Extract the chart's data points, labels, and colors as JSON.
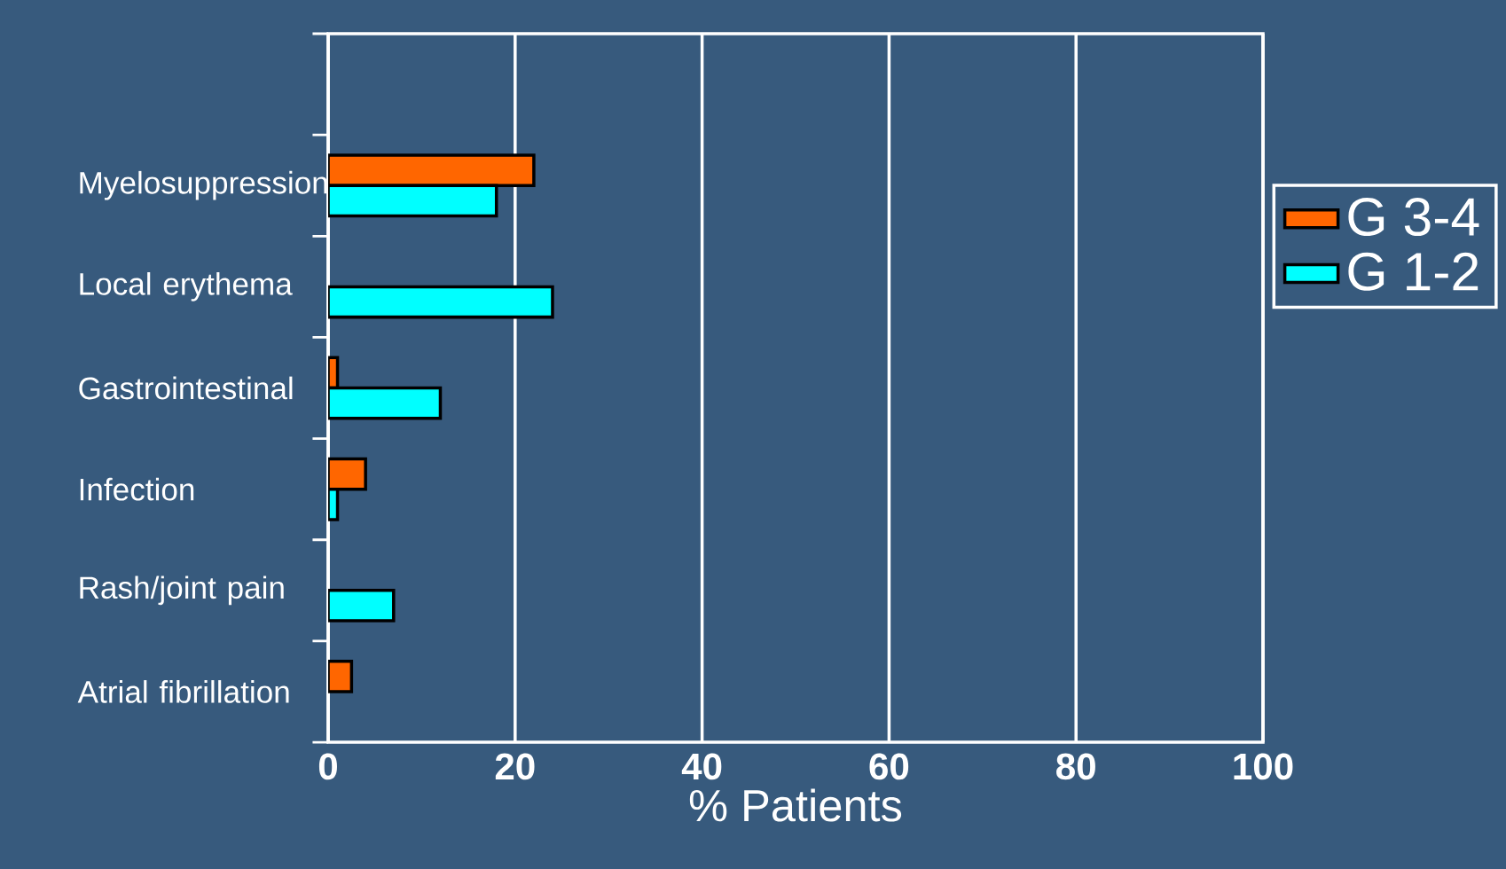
{
  "chart_data": {
    "type": "bar",
    "orientation": "horizontal",
    "categories": [
      null,
      "Myelosuppression",
      "Local erythema",
      "Gastrointestinal",
      "Infection",
      "Rash/joint pain",
      "Atrial fibrillation"
    ],
    "series": [
      {
        "name": "G 3-4",
        "color": "#ff6600",
        "values": [
          null,
          22,
          null,
          1,
          4,
          null,
          2.5
        ]
      },
      {
        "name": "G 1-2",
        "color": "#00ffff",
        "values": [
          null,
          18,
          24,
          12,
          1,
          7,
          null
        ]
      }
    ],
    "xlim": [
      0,
      100
    ],
    "xticks": [
      0,
      20,
      40,
      60,
      80,
      100
    ],
    "xlabel": "% Patients",
    "grid": "x",
    "legend": "right"
  }
}
